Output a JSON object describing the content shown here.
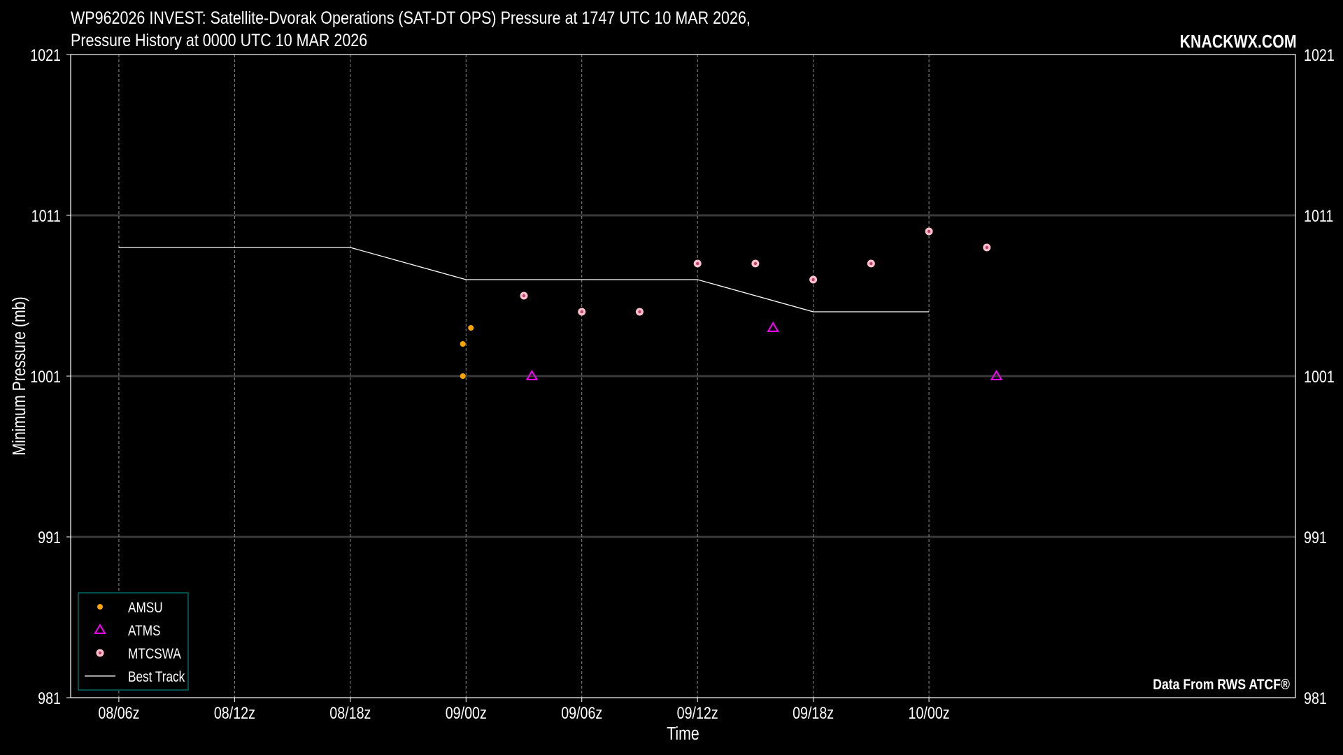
{
  "title_line1": "WP962026 INVEST: Satellite-Dvorak Operations (SAT-DT OPS) Pressure at 1747 UTC 10 MAR 2026,",
  "title_line2": "Pressure History at 0000 UTC 10 MAR 2026",
  "brand": "KNACKWX.COM",
  "credit": "Data From RWS ATCF®",
  "colors": {
    "background": "#000000",
    "amsu": "#ffa500",
    "atms": "#ff00ff",
    "mtcswa": "#ffc0cb",
    "best_track": "#ffffff",
    "legend_border": "#008080"
  },
  "chart_data": {
    "type": "scatter",
    "xlabel": "Time",
    "ylabel": "Minimum Pressure (mb)",
    "xlim": [
      "2026-03-08T03:30Z",
      "2026-03-10T19:00Z"
    ],
    "ylim": [
      981,
      1021
    ],
    "x_ticks": [
      {
        "t": "2026-03-08T06:00Z",
        "label": "08/06z"
      },
      {
        "t": "2026-03-08T12:00Z",
        "label": "08/12z"
      },
      {
        "t": "2026-03-08T18:00Z",
        "label": "08/18z"
      },
      {
        "t": "2026-03-09T00:00Z",
        "label": "09/00z"
      },
      {
        "t": "2026-03-09T06:00Z",
        "label": "09/06z"
      },
      {
        "t": "2026-03-09T12:00Z",
        "label": "09/12z"
      },
      {
        "t": "2026-03-09T18:00Z",
        "label": "09/18z"
      },
      {
        "t": "2026-03-10T00:00Z",
        "label": "10/00z"
      }
    ],
    "y_ticks": [
      981,
      991,
      1001,
      1011,
      1021
    ],
    "grid": {
      "x": "dashed",
      "y": "solid"
    },
    "legend_position": "bottom-left",
    "legend": [
      "AMSU",
      "ATMS",
      "MTCSWA",
      "Best Track"
    ],
    "series": [
      {
        "name": "AMSU",
        "marker": "dot",
        "points": [
          {
            "x": "2026-03-08T23:50Z",
            "y": 1001
          },
          {
            "x": "2026-03-08T23:50Z",
            "y": 1003
          },
          {
            "x": "2026-03-09T00:15Z",
            "y": 1004
          }
        ]
      },
      {
        "name": "ATMS",
        "marker": "triangle",
        "points": [
          {
            "x": "2026-03-09T03:25Z",
            "y": 1001
          },
          {
            "x": "2026-03-09T15:55Z",
            "y": 1004
          },
          {
            "x": "2026-03-10T03:30Z",
            "y": 1001
          }
        ]
      },
      {
        "name": "MTCSWA",
        "marker": "ring",
        "points": [
          {
            "x": "2026-03-09T03:00Z",
            "y": 1006
          },
          {
            "x": "2026-03-09T06:00Z",
            "y": 1005
          },
          {
            "x": "2026-03-09T09:00Z",
            "y": 1005
          },
          {
            "x": "2026-03-09T12:00Z",
            "y": 1008
          },
          {
            "x": "2026-03-09T15:00Z",
            "y": 1008
          },
          {
            "x": "2026-03-09T18:00Z",
            "y": 1007
          },
          {
            "x": "2026-03-09T21:00Z",
            "y": 1008
          },
          {
            "x": "2026-03-10T00:00Z",
            "y": 1010
          },
          {
            "x": "2026-03-10T03:00Z",
            "y": 1009
          }
        ]
      },
      {
        "name": "Best Track",
        "marker": "line",
        "points": [
          {
            "x": "2026-03-08T06:00Z",
            "y": 1009
          },
          {
            "x": "2026-03-08T12:00Z",
            "y": 1009
          },
          {
            "x": "2026-03-08T18:00Z",
            "y": 1009
          },
          {
            "x": "2026-03-09T00:00Z",
            "y": 1007
          },
          {
            "x": "2026-03-09T06:00Z",
            "y": 1007
          },
          {
            "x": "2026-03-09T12:00Z",
            "y": 1007
          },
          {
            "x": "2026-03-09T18:00Z",
            "y": 1005
          },
          {
            "x": "2026-03-10T00:00Z",
            "y": 1005
          }
        ]
      }
    ]
  }
}
